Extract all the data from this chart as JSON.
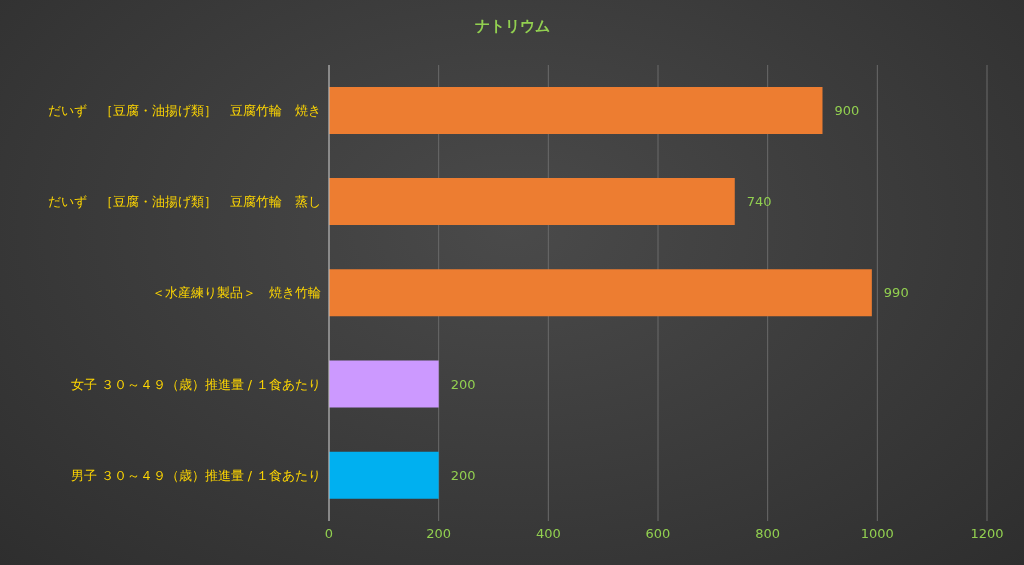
{
  "chart_data": {
    "type": "bar",
    "orientation": "horizontal",
    "title": "ナトリウム",
    "categories": [
      "だいず　［豆腐・油揚げ類］　豆腐竹輪　焼き",
      "だいず　［豆腐・油揚げ類］　豆腐竹輪　蒸し",
      "＜水産練り製品＞　焼き竹輪",
      "女子 ３０～４９（歳）推進量 / １食あたり",
      "男子 ３０～４９（歳）推進量 / １食あたり"
    ],
    "values": [
      900,
      740,
      990,
      200,
      200
    ],
    "colors": [
      "#ed7d31",
      "#ed7d31",
      "#ed7d31",
      "#cc99ff",
      "#00b0f0"
    ],
    "xlim": [
      0,
      1200
    ],
    "xticks": [
      0,
      200,
      400,
      600,
      800,
      1000,
      1200
    ],
    "grid": "x",
    "data_labels": true
  }
}
